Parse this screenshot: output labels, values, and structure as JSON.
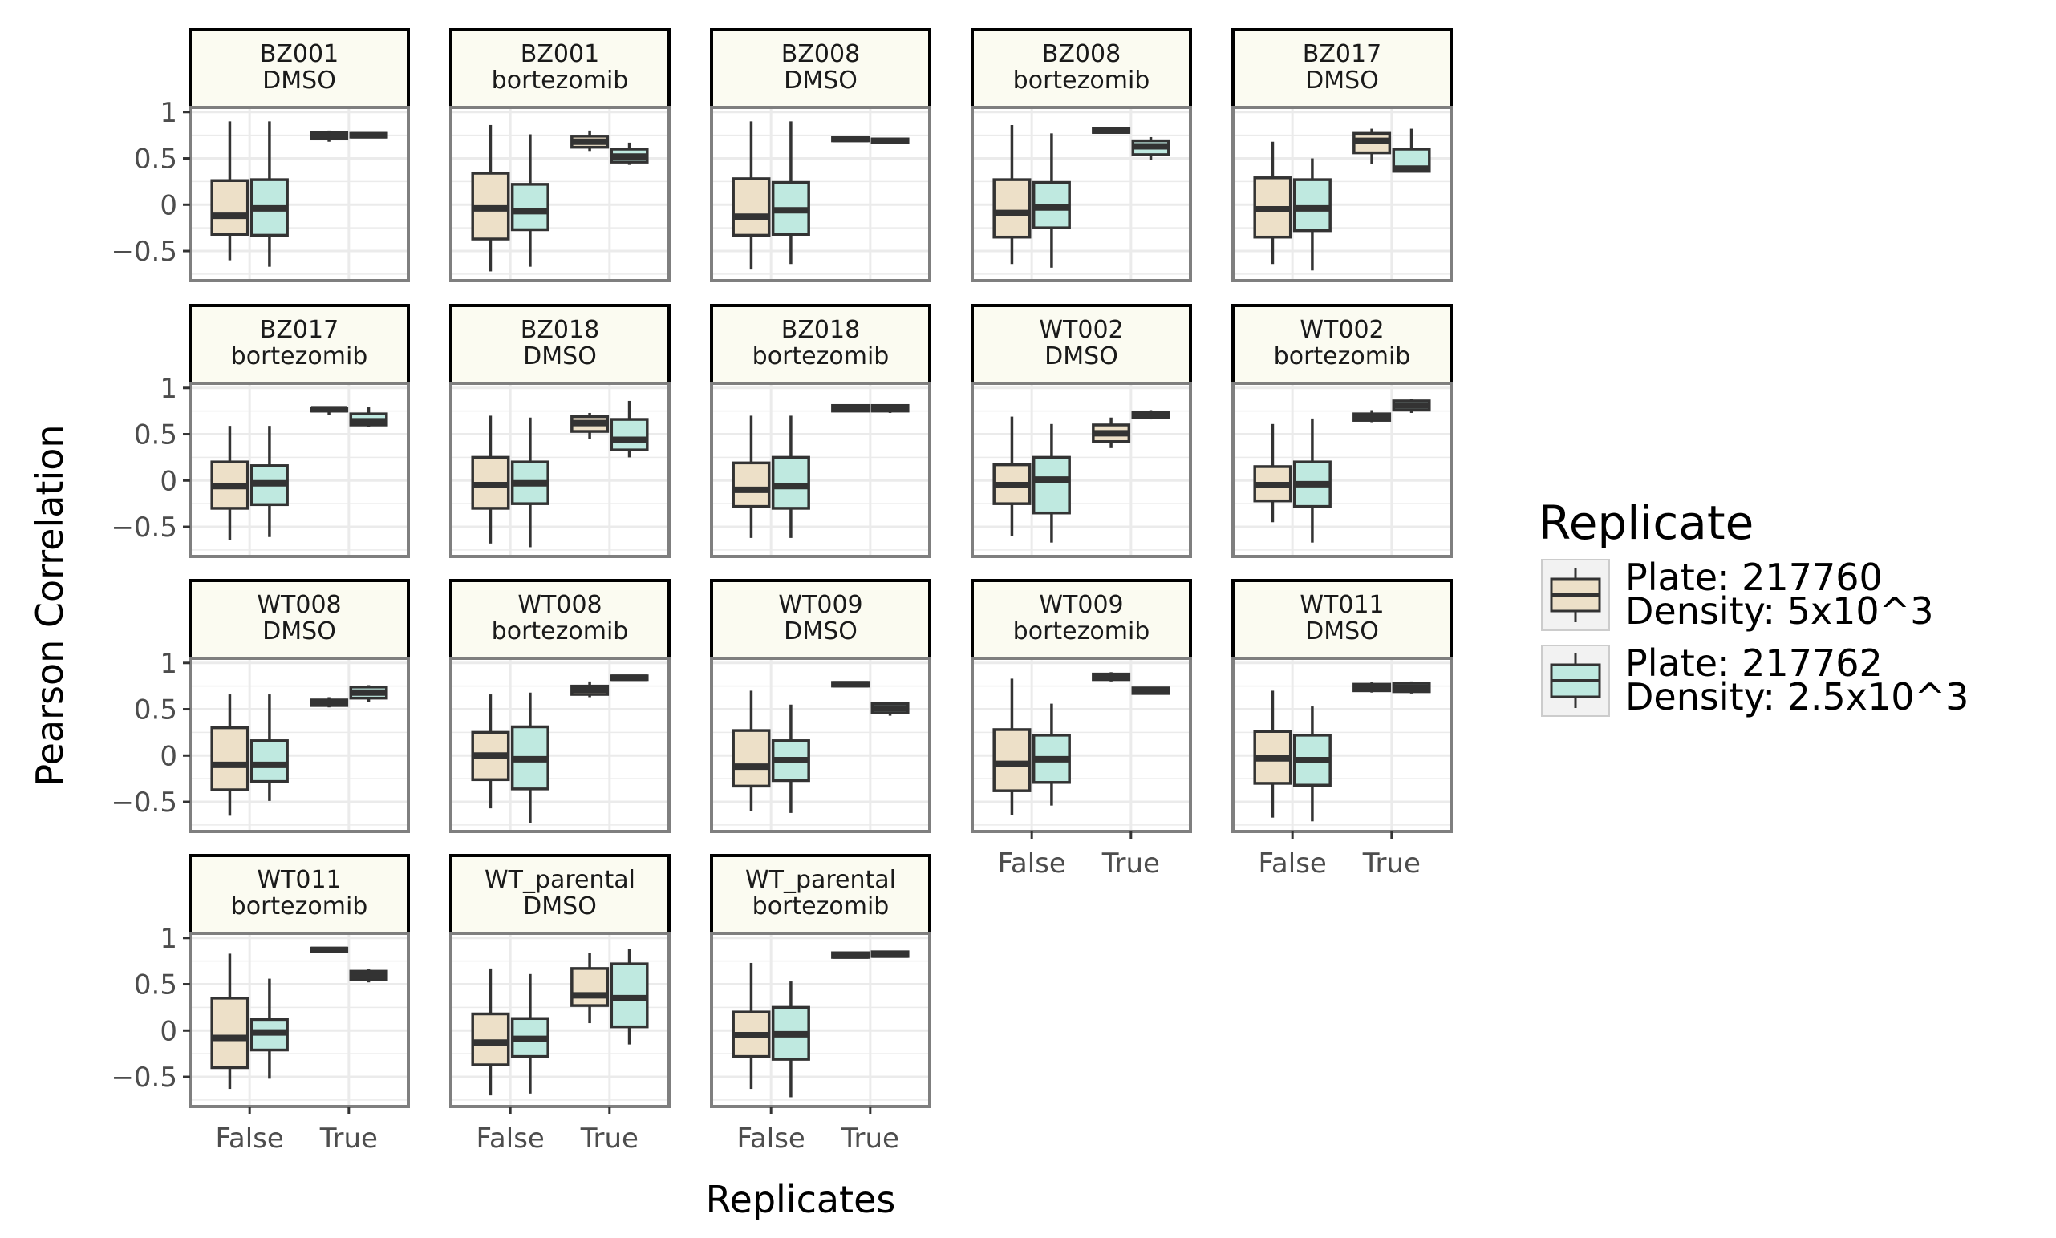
{
  "chart_data": {
    "type": "boxplot",
    "facet_layout": "wrap",
    "xlabel": "Replicates",
    "ylabel": "Pearson Correlation",
    "ylim": [
      -0.82,
      1.05
    ],
    "yticks": [
      -0.5,
      0,
      0.5,
      1
    ],
    "ytick_labels": [
      "−0.5",
      "0",
      "0.5",
      "1"
    ],
    "categories": [
      "False",
      "True"
    ],
    "grid": true,
    "legend": {
      "title": "Replicate",
      "placement": "right",
      "entries": [
        {
          "line1": "Plate: 217760",
          "line2": "Density: 5x10^3",
          "color": "#ede0c8"
        },
        {
          "line1": "Plate: 217762",
          "line2": "Density: 2.5x10^3",
          "color": "#bfe9e0"
        }
      ]
    },
    "colors": {
      "box_stroke": "#333333",
      "panel_border": "#7f7f7f",
      "grid": "#ebebeb",
      "strip_fill": "#fbfbf1",
      "strip_border": "#000000"
    },
    "panels": [
      {
        "line1": "BZ001",
        "line2": "DMSO",
        "boxes": [
          {
            "cat": "False",
            "rep": 0,
            "q1": -0.32,
            "med": -0.12,
            "q3": 0.26,
            "lo": -0.6,
            "hi": 0.9
          },
          {
            "cat": "False",
            "rep": 1,
            "q1": -0.33,
            "med": -0.04,
            "q3": 0.27,
            "lo": -0.67,
            "hi": 0.9
          },
          {
            "cat": "True",
            "rep": 0,
            "q1": 0.71,
            "med": 0.75,
            "q3": 0.78,
            "lo": 0.68,
            "hi": 0.8
          },
          {
            "cat": "True",
            "rep": 1,
            "q1": 0.73,
            "med": 0.75,
            "q3": 0.77,
            "lo": 0.72,
            "hi": 0.78
          }
        ]
      },
      {
        "line1": "BZ001",
        "line2": "bortezomib",
        "boxes": [
          {
            "cat": "False",
            "rep": 0,
            "q1": -0.37,
            "med": -0.04,
            "q3": 0.34,
            "lo": -0.72,
            "hi": 0.86
          },
          {
            "cat": "False",
            "rep": 1,
            "q1": -0.27,
            "med": -0.07,
            "q3": 0.22,
            "lo": -0.67,
            "hi": 0.76
          },
          {
            "cat": "True",
            "rep": 0,
            "q1": 0.62,
            "med": 0.68,
            "q3": 0.74,
            "lo": 0.58,
            "hi": 0.8
          },
          {
            "cat": "True",
            "rep": 1,
            "q1": 0.46,
            "med": 0.52,
            "q3": 0.6,
            "lo": 0.43,
            "hi": 0.67
          }
        ]
      },
      {
        "line1": "BZ008",
        "line2": "DMSO",
        "boxes": [
          {
            "cat": "False",
            "rep": 0,
            "q1": -0.33,
            "med": -0.13,
            "q3": 0.28,
            "lo": -0.7,
            "hi": 0.9
          },
          {
            "cat": "False",
            "rep": 1,
            "q1": -0.32,
            "med": -0.06,
            "q3": 0.24,
            "lo": -0.64,
            "hi": 0.9
          },
          {
            "cat": "True",
            "rep": 0,
            "q1": 0.69,
            "med": 0.71,
            "q3": 0.73,
            "lo": 0.68,
            "hi": 0.74
          },
          {
            "cat": "True",
            "rep": 1,
            "q1": 0.67,
            "med": 0.69,
            "q3": 0.71,
            "lo": 0.66,
            "hi": 0.72
          }
        ]
      },
      {
        "line1": "BZ008",
        "line2": "bortezomib",
        "boxes": [
          {
            "cat": "False",
            "rep": 0,
            "q1": -0.35,
            "med": -0.09,
            "q3": 0.27,
            "lo": -0.64,
            "hi": 0.86
          },
          {
            "cat": "False",
            "rep": 1,
            "q1": -0.25,
            "med": -0.03,
            "q3": 0.24,
            "lo": -0.68,
            "hi": 0.77
          },
          {
            "cat": "True",
            "rep": 0,
            "q1": 0.78,
            "med": 0.8,
            "q3": 0.82,
            "lo": 0.77,
            "hi": 0.83
          },
          {
            "cat": "True",
            "rep": 1,
            "q1": 0.54,
            "med": 0.63,
            "q3": 0.69,
            "lo": 0.48,
            "hi": 0.73
          }
        ]
      },
      {
        "line1": "BZ017",
        "line2": "DMSO",
        "boxes": [
          {
            "cat": "False",
            "rep": 0,
            "q1": -0.35,
            "med": -0.05,
            "q3": 0.29,
            "lo": -0.64,
            "hi": 0.68
          },
          {
            "cat": "False",
            "rep": 1,
            "q1": -0.28,
            "med": -0.04,
            "q3": 0.27,
            "lo": -0.71,
            "hi": 0.5
          },
          {
            "cat": "True",
            "rep": 0,
            "q1": 0.56,
            "med": 0.69,
            "q3": 0.77,
            "lo": 0.44,
            "hi": 0.82
          },
          {
            "cat": "True",
            "rep": 1,
            "q1": 0.36,
            "med": 0.39,
            "q3": 0.6,
            "lo": 0.35,
            "hi": 0.82
          }
        ]
      },
      {
        "line1": "BZ017",
        "line2": "bortezomib",
        "boxes": [
          {
            "cat": "False",
            "rep": 0,
            "q1": -0.3,
            "med": -0.06,
            "q3": 0.2,
            "lo": -0.64,
            "hi": 0.59
          },
          {
            "cat": "False",
            "rep": 1,
            "q1": -0.26,
            "med": -0.03,
            "q3": 0.16,
            "lo": -0.61,
            "hi": 0.59
          },
          {
            "cat": "True",
            "rep": 0,
            "q1": 0.75,
            "med": 0.77,
            "q3": 0.78,
            "lo": 0.71,
            "hi": 0.79
          },
          {
            "cat": "True",
            "rep": 1,
            "q1": 0.6,
            "med": 0.64,
            "q3": 0.72,
            "lo": 0.58,
            "hi": 0.79
          }
        ]
      },
      {
        "line1": "BZ018",
        "line2": "DMSO",
        "boxes": [
          {
            "cat": "False",
            "rep": 0,
            "q1": -0.3,
            "med": -0.05,
            "q3": 0.25,
            "lo": -0.68,
            "hi": 0.7
          },
          {
            "cat": "False",
            "rep": 1,
            "q1": -0.25,
            "med": -0.03,
            "q3": 0.2,
            "lo": -0.72,
            "hi": 0.68
          },
          {
            "cat": "True",
            "rep": 0,
            "q1": 0.53,
            "med": 0.62,
            "q3": 0.69,
            "lo": 0.45,
            "hi": 0.73
          },
          {
            "cat": "True",
            "rep": 1,
            "q1": 0.33,
            "med": 0.44,
            "q3": 0.66,
            "lo": 0.25,
            "hi": 0.86
          }
        ]
      },
      {
        "line1": "BZ018",
        "line2": "bortezomib",
        "boxes": [
          {
            "cat": "False",
            "rep": 0,
            "q1": -0.28,
            "med": -0.1,
            "q3": 0.19,
            "lo": -0.62,
            "hi": 0.7
          },
          {
            "cat": "False",
            "rep": 1,
            "q1": -0.3,
            "med": -0.06,
            "q3": 0.25,
            "lo": -0.62,
            "hi": 0.7
          },
          {
            "cat": "True",
            "rep": 0,
            "q1": 0.75,
            "med": 0.78,
            "q3": 0.81,
            "lo": 0.74,
            "hi": 0.82
          },
          {
            "cat": "True",
            "rep": 1,
            "q1": 0.75,
            "med": 0.78,
            "q3": 0.81,
            "lo": 0.73,
            "hi": 0.82
          }
        ]
      },
      {
        "line1": "WT002",
        "line2": "DMSO",
        "boxes": [
          {
            "cat": "False",
            "rep": 0,
            "q1": -0.25,
            "med": -0.05,
            "q3": 0.17,
            "lo": -0.6,
            "hi": 0.69
          },
          {
            "cat": "False",
            "rep": 1,
            "q1": -0.35,
            "med": 0.01,
            "q3": 0.25,
            "lo": -0.67,
            "hi": 0.61
          },
          {
            "cat": "True",
            "rep": 0,
            "q1": 0.42,
            "med": 0.51,
            "q3": 0.6,
            "lo": 0.35,
            "hi": 0.68
          },
          {
            "cat": "True",
            "rep": 1,
            "q1": 0.68,
            "med": 0.71,
            "q3": 0.74,
            "lo": 0.66,
            "hi": 0.76
          }
        ]
      },
      {
        "line1": "WT002",
        "line2": "bortezomib",
        "boxes": [
          {
            "cat": "False",
            "rep": 0,
            "q1": -0.22,
            "med": -0.05,
            "q3": 0.15,
            "lo": -0.45,
            "hi": 0.61
          },
          {
            "cat": "False",
            "rep": 1,
            "q1": -0.28,
            "med": -0.04,
            "q3": 0.2,
            "lo": -0.67,
            "hi": 0.67
          },
          {
            "cat": "True",
            "rep": 0,
            "q1": 0.65,
            "med": 0.68,
            "q3": 0.72,
            "lo": 0.63,
            "hi": 0.76
          },
          {
            "cat": "True",
            "rep": 1,
            "q1": 0.76,
            "med": 0.81,
            "q3": 0.86,
            "lo": 0.73,
            "hi": 0.88
          }
        ]
      },
      {
        "line1": "WT008",
        "line2": "DMSO",
        "boxes": [
          {
            "cat": "False",
            "rep": 0,
            "q1": -0.37,
            "med": -0.1,
            "q3": 0.3,
            "lo": -0.65,
            "hi": 0.66
          },
          {
            "cat": "False",
            "rep": 1,
            "q1": -0.28,
            "med": -0.1,
            "q3": 0.16,
            "lo": -0.49,
            "hi": 0.66
          },
          {
            "cat": "True",
            "rep": 0,
            "q1": 0.54,
            "med": 0.57,
            "q3": 0.6,
            "lo": 0.52,
            "hi": 0.63
          },
          {
            "cat": "True",
            "rep": 1,
            "q1": 0.62,
            "med": 0.68,
            "q3": 0.74,
            "lo": 0.58,
            "hi": 0.76
          }
        ]
      },
      {
        "line1": "WT008",
        "line2": "bortezomib",
        "boxes": [
          {
            "cat": "False",
            "rep": 0,
            "q1": -0.26,
            "med": 0.0,
            "q3": 0.25,
            "lo": -0.57,
            "hi": 0.66
          },
          {
            "cat": "False",
            "rep": 1,
            "q1": -0.36,
            "med": -0.04,
            "q3": 0.31,
            "lo": -0.73,
            "hi": 0.68
          },
          {
            "cat": "True",
            "rep": 0,
            "q1": 0.66,
            "med": 0.71,
            "q3": 0.75,
            "lo": 0.63,
            "hi": 0.8
          },
          {
            "cat": "True",
            "rep": 1,
            "q1": 0.82,
            "med": 0.84,
            "q3": 0.86,
            "lo": 0.81,
            "hi": 0.87
          }
        ]
      },
      {
        "line1": "WT009",
        "line2": "DMSO",
        "boxes": [
          {
            "cat": "False",
            "rep": 0,
            "q1": -0.33,
            "med": -0.12,
            "q3": 0.27,
            "lo": -0.6,
            "hi": 0.7
          },
          {
            "cat": "False",
            "rep": 1,
            "q1": -0.27,
            "med": -0.05,
            "q3": 0.16,
            "lo": -0.62,
            "hi": 0.55
          },
          {
            "cat": "True",
            "rep": 0,
            "q1": 0.75,
            "med": 0.77,
            "q3": 0.79,
            "lo": 0.74,
            "hi": 0.8
          },
          {
            "cat": "True",
            "rep": 1,
            "q1": 0.46,
            "med": 0.51,
            "q3": 0.56,
            "lo": 0.43,
            "hi": 0.58
          }
        ]
      },
      {
        "line1": "WT009",
        "line2": "bortezomib",
        "boxes": [
          {
            "cat": "False",
            "rep": 0,
            "q1": -0.38,
            "med": -0.09,
            "q3": 0.28,
            "lo": -0.64,
            "hi": 0.83
          },
          {
            "cat": "False",
            "rep": 1,
            "q1": -0.29,
            "med": -0.04,
            "q3": 0.22,
            "lo": -0.54,
            "hi": 0.56
          },
          {
            "cat": "True",
            "rep": 0,
            "q1": 0.82,
            "med": 0.85,
            "q3": 0.88,
            "lo": 0.8,
            "hi": 0.9
          },
          {
            "cat": "True",
            "rep": 1,
            "q1": 0.67,
            "med": 0.7,
            "q3": 0.73,
            "lo": 0.66,
            "hi": 0.74
          }
        ]
      },
      {
        "line1": "WT011",
        "line2": "DMSO",
        "boxes": [
          {
            "cat": "False",
            "rep": 0,
            "q1": -0.3,
            "med": -0.03,
            "q3": 0.26,
            "lo": -0.67,
            "hi": 0.7
          },
          {
            "cat": "False",
            "rep": 1,
            "q1": -0.32,
            "med": -0.05,
            "q3": 0.22,
            "lo": -0.71,
            "hi": 0.53
          },
          {
            "cat": "True",
            "rep": 0,
            "q1": 0.7,
            "med": 0.73,
            "q3": 0.77,
            "lo": 0.68,
            "hi": 0.79
          },
          {
            "cat": "True",
            "rep": 1,
            "q1": 0.69,
            "med": 0.73,
            "q3": 0.78,
            "lo": 0.67,
            "hi": 0.8
          }
        ]
      },
      {
        "line1": "WT011",
        "line2": "bortezomib",
        "boxes": [
          {
            "cat": "False",
            "rep": 0,
            "q1": -0.4,
            "med": -0.08,
            "q3": 0.35,
            "lo": -0.63,
            "hi": 0.83
          },
          {
            "cat": "False",
            "rep": 1,
            "q1": -0.21,
            "med": -0.02,
            "q3": 0.12,
            "lo": -0.52,
            "hi": 0.56
          },
          {
            "cat": "True",
            "rep": 0,
            "q1": 0.85,
            "med": 0.87,
            "q3": 0.89,
            "lo": 0.84,
            "hi": 0.9
          },
          {
            "cat": "True",
            "rep": 1,
            "q1": 0.55,
            "med": 0.59,
            "q3": 0.64,
            "lo": 0.52,
            "hi": 0.66
          }
        ]
      },
      {
        "line1": "WT_parental",
        "line2": "DMSO",
        "boxes": [
          {
            "cat": "False",
            "rep": 0,
            "q1": -0.37,
            "med": -0.13,
            "q3": 0.18,
            "lo": -0.7,
            "hi": 0.67
          },
          {
            "cat": "False",
            "rep": 1,
            "q1": -0.28,
            "med": -0.09,
            "q3": 0.13,
            "lo": -0.68,
            "hi": 0.61
          },
          {
            "cat": "True",
            "rep": 0,
            "q1": 0.27,
            "med": 0.38,
            "q3": 0.67,
            "lo": 0.08,
            "hi": 0.84
          },
          {
            "cat": "True",
            "rep": 1,
            "q1": 0.04,
            "med": 0.35,
            "q3": 0.72,
            "lo": -0.15,
            "hi": 0.88
          }
        ]
      },
      {
        "line1": "WT_parental",
        "line2": "bortezomib",
        "boxes": [
          {
            "cat": "False",
            "rep": 0,
            "q1": -0.28,
            "med": -0.05,
            "q3": 0.2,
            "lo": -0.63,
            "hi": 0.73
          },
          {
            "cat": "False",
            "rep": 1,
            "q1": -0.31,
            "med": -0.04,
            "q3": 0.25,
            "lo": -0.72,
            "hi": 0.53
          },
          {
            "cat": "True",
            "rep": 0,
            "q1": 0.79,
            "med": 0.81,
            "q3": 0.84,
            "lo": 0.78,
            "hi": 0.85
          },
          {
            "cat": "True",
            "rep": 1,
            "q1": 0.8,
            "med": 0.82,
            "q3": 0.85,
            "lo": 0.79,
            "hi": 0.86
          }
        ]
      }
    ]
  }
}
